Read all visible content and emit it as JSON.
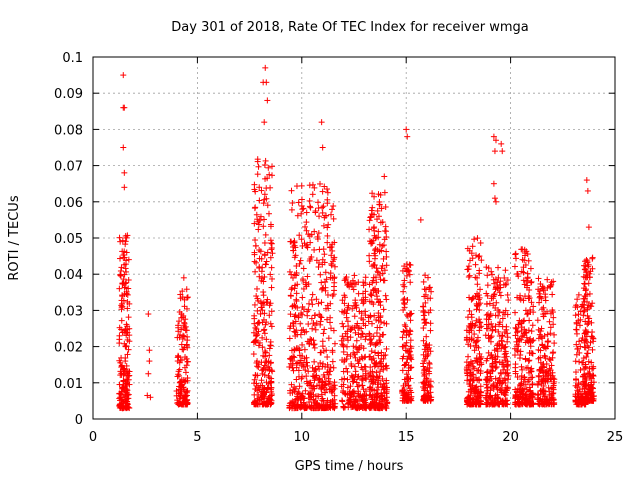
{
  "chart_data": {
    "type": "scatter",
    "title": "Day 301 of 2018, Rate Of TEC Index for receiver wmga",
    "xlabel": "GPS time / hours",
    "ylabel": "ROTI / TECUs",
    "xlim": [
      0,
      25
    ],
    "ylim": [
      0,
      0.1
    ],
    "xticks": [
      0,
      5,
      10,
      15,
      20,
      25
    ],
    "yticks": [
      0,
      0.01,
      0.02,
      0.03,
      0.04,
      0.05,
      0.06,
      0.07,
      0.08,
      0.09,
      0.1
    ],
    "grid": true,
    "legend": "none",
    "marker": "plus",
    "color": "#ff0000",
    "notable_points": [
      {
        "x": 1.45,
        "y": 0.095
      },
      {
        "x": 1.45,
        "y": 0.086
      },
      {
        "x": 1.5,
        "y": 0.086
      },
      {
        "x": 1.45,
        "y": 0.075
      },
      {
        "x": 1.5,
        "y": 0.068
      },
      {
        "x": 1.5,
        "y": 0.064
      },
      {
        "x": 2.65,
        "y": 0.029
      },
      {
        "x": 2.7,
        "y": 0.019
      },
      {
        "x": 2.7,
        "y": 0.016
      },
      {
        "x": 2.65,
        "y": 0.0125
      },
      {
        "x": 2.6,
        "y": 0.0065
      },
      {
        "x": 2.75,
        "y": 0.006
      },
      {
        "x": 4.35,
        "y": 0.039
      },
      {
        "x": 8.25,
        "y": 0.097
      },
      {
        "x": 8.3,
        "y": 0.093
      },
      {
        "x": 8.15,
        "y": 0.093
      },
      {
        "x": 8.35,
        "y": 0.088
      },
      {
        "x": 8.2,
        "y": 0.082
      },
      {
        "x": 10.95,
        "y": 0.082
      },
      {
        "x": 11.0,
        "y": 0.075
      },
      {
        "x": 15.0,
        "y": 0.08
      },
      {
        "x": 15.05,
        "y": 0.078
      },
      {
        "x": 15.7,
        "y": 0.055
      },
      {
        "x": 13.95,
        "y": 0.067
      },
      {
        "x": 19.2,
        "y": 0.078
      },
      {
        "x": 19.3,
        "y": 0.077
      },
      {
        "x": 19.25,
        "y": 0.074
      },
      {
        "x": 19.55,
        "y": 0.076
      },
      {
        "x": 19.6,
        "y": 0.074
      },
      {
        "x": 19.2,
        "y": 0.065
      },
      {
        "x": 19.25,
        "y": 0.061
      },
      {
        "x": 19.3,
        "y": 0.06
      },
      {
        "x": 23.65,
        "y": 0.066
      },
      {
        "x": 23.7,
        "y": 0.063
      },
      {
        "x": 23.75,
        "y": 0.053
      }
    ],
    "clusters": [
      {
        "x_range": [
          1.25,
          1.75
        ],
        "y_range": [
          0.003,
          0.051
        ],
        "count": 200
      },
      {
        "x_range": [
          4.0,
          4.55
        ],
        "y_range": [
          0.004,
          0.036
        ],
        "count": 140
      },
      {
        "x_range": [
          7.7,
          8.6
        ],
        "y_range": [
          0.004,
          0.076
        ],
        "count": 280
      },
      {
        "x_range": [
          9.4,
          11.6
        ],
        "y_range": [
          0.003,
          0.065
        ],
        "count": 520
      },
      {
        "x_range": [
          11.9,
          13.1
        ],
        "y_range": [
          0.003,
          0.04
        ],
        "count": 260
      },
      {
        "x_range": [
          13.2,
          14.1
        ],
        "y_range": [
          0.003,
          0.063
        ],
        "count": 300
      },
      {
        "x_range": [
          14.8,
          15.25
        ],
        "y_range": [
          0.005,
          0.043
        ],
        "count": 130
      },
      {
        "x_range": [
          15.8,
          16.2
        ],
        "y_range": [
          0.005,
          0.04
        ],
        "count": 120
      },
      {
        "x_range": [
          17.9,
          18.6
        ],
        "y_range": [
          0.004,
          0.05
        ],
        "count": 230
      },
      {
        "x_range": [
          18.8,
          19.9
        ],
        "y_range": [
          0.004,
          0.042
        ],
        "count": 280
      },
      {
        "x_range": [
          20.2,
          21.1
        ],
        "y_range": [
          0.004,
          0.047
        ],
        "count": 250
      },
      {
        "x_range": [
          21.3,
          22.1
        ],
        "y_range": [
          0.004,
          0.039
        ],
        "count": 200
      },
      {
        "x_range": [
          23.1,
          23.6
        ],
        "y_range": [
          0.004,
          0.035
        ],
        "count": 120
      },
      {
        "x_range": [
          23.5,
          24.0
        ],
        "y_range": [
          0.005,
          0.045
        ],
        "count": 160
      }
    ]
  }
}
